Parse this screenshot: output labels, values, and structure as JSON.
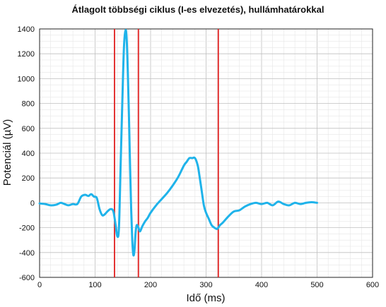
{
  "chart_data": {
    "type": "line",
    "title": "Átlagolt többségi ciklus (I-es elvezetés), hullámhatárokkal",
    "xlabel": "Idő (ms)",
    "ylabel": "Potenciál (µV)",
    "xlim": [
      0,
      600
    ],
    "ylim": [
      -600,
      1400
    ],
    "xticks": [
      0,
      100,
      200,
      300,
      400,
      500,
      600
    ],
    "yticks": [
      -600,
      -400,
      -200,
      0,
      200,
      400,
      600,
      800,
      1000,
      1200,
      1400
    ],
    "grid": true,
    "series": [
      {
        "color": "#1fb3ea",
        "x": [
          0,
          10,
          20,
          30,
          38,
          45,
          52,
          60,
          68,
          75,
          82,
          88,
          93,
          98,
          103,
          108,
          113,
          118,
          122,
          128,
          133,
          137,
          140,
          143,
          146,
          149,
          152,
          155,
          157,
          159,
          161,
          163,
          165,
          167,
          169,
          171,
          173,
          175,
          178,
          181,
          185,
          190,
          195,
          200,
          210,
          220,
          230,
          240,
          250,
          260,
          265,
          270,
          275,
          280,
          285,
          288,
          292,
          296,
          300,
          305,
          310,
          315,
          320,
          325,
          330,
          340,
          350,
          360,
          370,
          380,
          390,
          400,
          410,
          420,
          430,
          440,
          450,
          460,
          470,
          480,
          490,
          500
        ],
        "y": [
          -5,
          -10,
          -20,
          -15,
          0,
          -10,
          -20,
          -10,
          -10,
          50,
          65,
          55,
          70,
          50,
          40,
          -50,
          -100,
          -90,
          -70,
          -50,
          -70,
          -180,
          -270,
          -200,
          300,
          800,
          1250,
          1390,
          1310,
          1050,
          700,
          300,
          -50,
          -300,
          -420,
          -380,
          -240,
          -180,
          -200,
          -230,
          -190,
          -150,
          -120,
          -80,
          -20,
          30,
          80,
          140,
          210,
          300,
          330,
          360,
          360,
          360,
          300,
          220,
          100,
          -20,
          -80,
          -130,
          -180,
          -200,
          -210,
          -180,
          -160,
          -110,
          -70,
          -60,
          -30,
          -10,
          0,
          -10,
          0,
          -20,
          10,
          -10,
          -20,
          0,
          -10,
          0,
          5,
          0
        ]
      }
    ],
    "vlines": [
      {
        "x": 135,
        "color": "#e01e1e"
      },
      {
        "x": 178,
        "color": "#e01e1e"
      },
      {
        "x": 322,
        "color": "#e01e1e"
      }
    ]
  }
}
